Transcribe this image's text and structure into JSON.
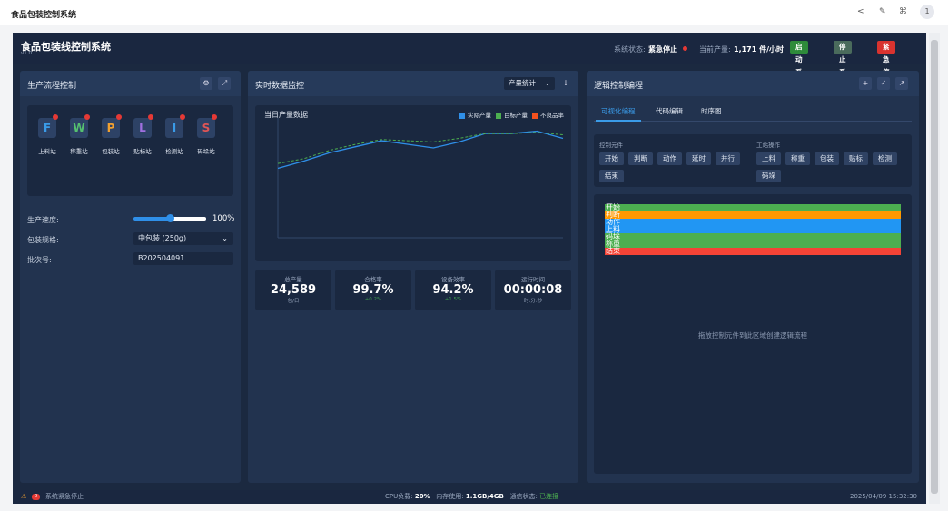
{
  "top_bar": {
    "title": "食品包装控制系统",
    "user_badge": "1"
  },
  "header": {
    "title": "食品包装线控制系统",
    "version": "v1.0",
    "status_label": "系统状态:",
    "status_value": "紧急停止",
    "output_label": "当前产量:",
    "output_value": "1,171 件/小时",
    "buttons": [
      {
        "label": "启动系统",
        "color": "#2e8b3a"
      },
      {
        "label": "停止系统",
        "color": "#4a6b5c"
      },
      {
        "label": "紧急停止",
        "color": "#d9332f"
      }
    ]
  },
  "left_panel": {
    "title": "生产流程控制",
    "stations": [
      {
        "letter": "F",
        "label": "上料站",
        "color": "#3a9be8"
      },
      {
        "letter": "W",
        "label": "称重站",
        "color": "#55c070"
      },
      {
        "letter": "P",
        "label": "包装站",
        "color": "#f0a030"
      },
      {
        "letter": "L",
        "label": "贴标站",
        "color": "#a070e0"
      },
      {
        "letter": "I",
        "label": "检测站",
        "color": "#3a9be8"
      },
      {
        "letter": "S",
        "label": "码垛站",
        "color": "#e05555"
      }
    ],
    "form": [
      {
        "label": "生产速度:",
        "value": "100%"
      },
      {
        "label": "包装规格:",
        "value": "中包装 (250g)"
      },
      {
        "label": "批次号:",
        "value": "B202504091"
      }
    ]
  },
  "middle_panel": {
    "title": "实时数据监控",
    "dropdown": "产量统计",
    "stats": [
      {
        "label": "总产量",
        "value": "24,589",
        "sub": "包/日"
      },
      {
        "label": "合格率",
        "value": "99.7%",
        "sub": "+0.2%"
      },
      {
        "label": "设备效率",
        "value": "94.2%",
        "sub": "+1.5%"
      },
      {
        "label": "运行时间",
        "value": "00:00:08",
        "sub": "时:分:秒"
      }
    ]
  },
  "chart_data": {
    "type": "line",
    "title": "当日产量数据",
    "categories": [
      null,
      null,
      null,
      null,
      null,
      null,
      null,
      null,
      null,
      null,
      null,
      null
    ],
    "series": [
      {
        "name": "实际产量",
        "color": "#2f8fe8",
        "values": [
          58,
          64,
          71,
          76,
          81,
          78,
          75,
          80,
          87,
          87,
          89,
          83
        ]
      },
      {
        "name": "目标产量",
        "color": "#4caf50",
        "values": [
          62,
          66,
          73,
          78,
          82,
          81,
          80,
          83,
          87,
          87,
          88,
          86
        ]
      },
      {
        "name": "不良品率",
        "color": "#f4511e",
        "values": [
          null,
          null,
          null,
          null,
          null,
          null,
          null,
          null,
          null,
          null,
          null,
          null
        ]
      }
    ],
    "ylim": [
      0,
      100
    ]
  },
  "right_panel": {
    "title": "逻辑控制编程",
    "tabs": [
      "可视化编程",
      "代码编辑",
      "时序图"
    ],
    "control_group": {
      "label": "控制元件",
      "items": [
        "开始",
        "判断",
        "动作",
        "延时",
        "并行",
        "结束"
      ]
    },
    "station_group": {
      "label": "工站操作",
      "items": [
        "上料",
        "称重",
        "包装",
        "贴标",
        "检测",
        "码垛"
      ]
    },
    "flow_blocks": [
      {
        "label": "开始",
        "color": "#4caf50"
      },
      {
        "label": "判断",
        "color": "#ff9800"
      },
      {
        "label": "动作",
        "color": "#2196f3"
      },
      {
        "label": "上料",
        "color": "#2196f3"
      },
      {
        "label": "码垛",
        "color": "#4caf50"
      },
      {
        "label": "称重",
        "color": "#4caf50"
      },
      {
        "label": "结束",
        "color": "#f44336"
      }
    ],
    "hint": "拖放控制元件到此区域创建逻辑流程"
  },
  "footer": {
    "alert_count": "0",
    "alert_text": "系统紧急停止",
    "cpu_label": "CPU负载:",
    "cpu_value": "20%",
    "mem_label": "内存使用:",
    "mem_value": "1.1GB/4GB",
    "comm_label": "通信状态:",
    "comm_value": "已连接",
    "time": "2025/04/09 15:32:30"
  }
}
